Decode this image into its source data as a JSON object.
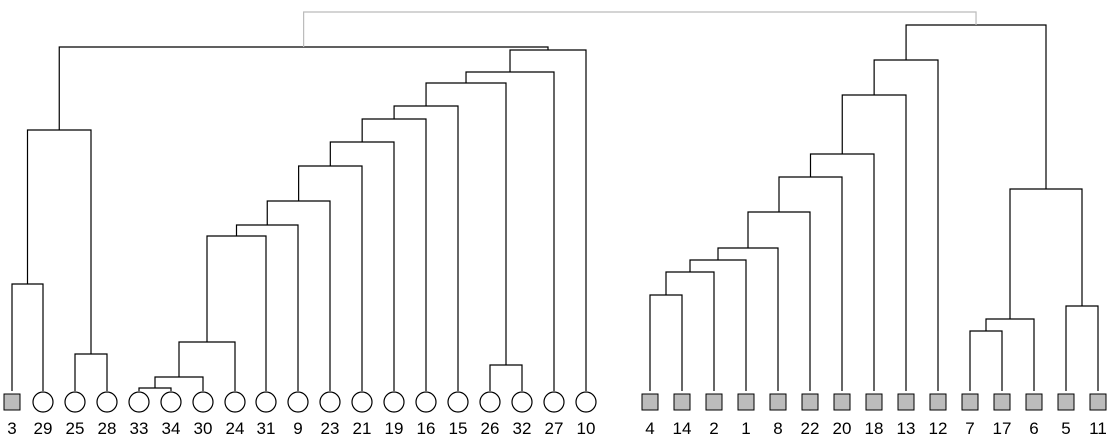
{
  "leaves": [
    {
      "label": "3",
      "shape": "square"
    },
    {
      "label": "29",
      "shape": "circle"
    },
    {
      "label": "25",
      "shape": "circle"
    },
    {
      "label": "28",
      "shape": "circle"
    },
    {
      "label": "33",
      "shape": "circle"
    },
    {
      "label": "34",
      "shape": "circle"
    },
    {
      "label": "30",
      "shape": "circle"
    },
    {
      "label": "24",
      "shape": "circle"
    },
    {
      "label": "31",
      "shape": "circle"
    },
    {
      "label": "9",
      "shape": "circle"
    },
    {
      "label": "23",
      "shape": "circle"
    },
    {
      "label": "21",
      "shape": "circle"
    },
    {
      "label": "19",
      "shape": "circle"
    },
    {
      "label": "16",
      "shape": "circle"
    },
    {
      "label": "15",
      "shape": "circle"
    },
    {
      "label": "26",
      "shape": "circle"
    },
    {
      "label": "32",
      "shape": "circle"
    },
    {
      "label": "27",
      "shape": "circle"
    },
    {
      "label": "10",
      "shape": "circle"
    },
    {
      "label": "4",
      "shape": "square"
    },
    {
      "label": "14",
      "shape": "square"
    },
    {
      "label": "2",
      "shape": "square"
    },
    {
      "label": "1",
      "shape": "square"
    },
    {
      "label": "8",
      "shape": "square"
    },
    {
      "label": "22",
      "shape": "square"
    },
    {
      "label": "20",
      "shape": "square"
    },
    {
      "label": "18",
      "shape": "square"
    },
    {
      "label": "13",
      "shape": "square"
    },
    {
      "label": "12",
      "shape": "square"
    },
    {
      "label": "7",
      "shape": "square"
    },
    {
      "label": "17",
      "shape": "square"
    },
    {
      "label": "6",
      "shape": "square"
    },
    {
      "label": "5",
      "shape": "square"
    },
    {
      "label": "11",
      "shape": "square"
    }
  ],
  "colors": {
    "line": "#000000",
    "root_line": "#bbbbbb",
    "square_fill": "#bcbcbc",
    "circle_fill": "#ffffff"
  }
}
